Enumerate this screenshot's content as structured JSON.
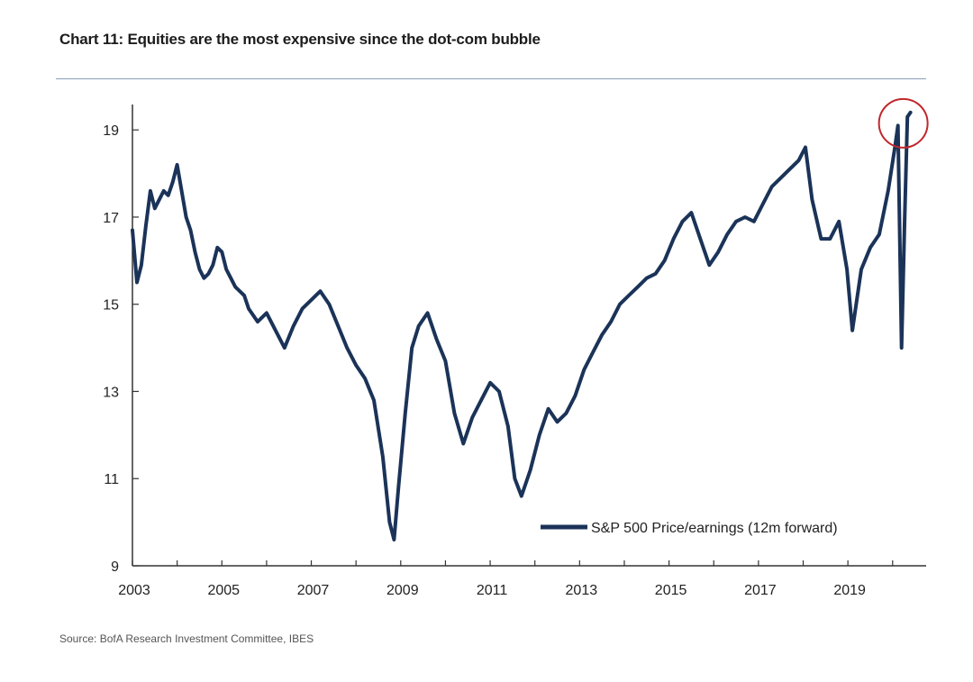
{
  "chart_data": {
    "type": "line",
    "title": "Chart 11: Equities are the most expensive since the dot-com bubble",
    "source": "Source: BofA Research Investment Committee, IBES",
    "xlabel": "",
    "ylabel": "",
    "xlim": [
      2003,
      2020.75
    ],
    "ylim": [
      9,
      19.5
    ],
    "x_ticks": [
      "2003",
      "2005",
      "2007",
      "2009",
      "2011",
      "2013",
      "2015",
      "2017",
      "2019"
    ],
    "y_ticks": [
      "9",
      "11",
      "13",
      "15",
      "17",
      "19"
    ],
    "grid": false,
    "legend": {
      "position": "bottom-right",
      "entries": [
        "S&P 500 Price/earnings (12m forward)"
      ]
    },
    "annotation": "red circle highlighting the early-2020 peak",
    "colors": {
      "line": "#1b3358",
      "annotation": "#c0282d",
      "axis": "#333333"
    },
    "series": [
      {
        "name": "S&P 500 Price/earnings (12m forward)",
        "x": [
          2003.0,
          2003.1,
          2003.2,
          2003.3,
          2003.4,
          2003.5,
          2003.6,
          2003.7,
          2003.8,
          2003.9,
          2004.0,
          2004.1,
          2004.2,
          2004.3,
          2004.4,
          2004.5,
          2004.6,
          2004.7,
          2004.8,
          2004.9,
          2005.0,
          2005.1,
          2005.2,
          2005.3,
          2005.4,
          2005.5,
          2005.6,
          2005.8,
          2006.0,
          2006.2,
          2006.4,
          2006.6,
          2006.8,
          2007.0,
          2007.2,
          2007.4,
          2007.6,
          2007.8,
          2008.0,
          2008.2,
          2008.4,
          2008.6,
          2008.75,
          2008.85,
          2008.95,
          2009.1,
          2009.25,
          2009.4,
          2009.6,
          2009.8,
          2010.0,
          2010.2,
          2010.4,
          2010.6,
          2010.8,
          2011.0,
          2011.2,
          2011.4,
          2011.55,
          2011.7,
          2011.9,
          2012.1,
          2012.3,
          2012.5,
          2012.7,
          2012.9,
          2013.1,
          2013.3,
          2013.5,
          2013.7,
          2013.9,
          2014.1,
          2014.3,
          2014.5,
          2014.7,
          2014.9,
          2015.1,
          2015.3,
          2015.5,
          2015.7,
          2015.9,
          2016.1,
          2016.3,
          2016.5,
          2016.7,
          2016.9,
          2017.1,
          2017.3,
          2017.5,
          2017.7,
          2017.9,
          2018.05,
          2018.2,
          2018.4,
          2018.6,
          2018.8,
          2018.98,
          2019.1,
          2019.3,
          2019.5,
          2019.7,
          2019.9,
          2020.05,
          2020.12,
          2020.2,
          2020.27,
          2020.33,
          2020.4
        ],
        "values": [
          16.7,
          15.5,
          15.9,
          16.8,
          17.6,
          17.2,
          17.4,
          17.6,
          17.5,
          17.8,
          18.2,
          17.6,
          17.0,
          16.7,
          16.2,
          15.8,
          15.6,
          15.7,
          15.9,
          16.3,
          16.2,
          15.8,
          15.6,
          15.4,
          15.3,
          15.2,
          14.9,
          14.6,
          14.8,
          14.4,
          14.0,
          14.5,
          14.9,
          15.1,
          15.3,
          15.0,
          14.5,
          14.0,
          13.6,
          13.3,
          12.8,
          11.5,
          10.0,
          9.6,
          10.8,
          12.5,
          14.0,
          14.5,
          14.8,
          14.2,
          13.7,
          12.5,
          11.8,
          12.4,
          12.8,
          13.2,
          13.0,
          12.2,
          11.0,
          10.6,
          11.2,
          12.0,
          12.6,
          12.3,
          12.5,
          12.9,
          13.5,
          13.9,
          14.3,
          14.6,
          15.0,
          15.2,
          15.4,
          15.6,
          15.7,
          16.0,
          16.5,
          16.9,
          17.1,
          16.5,
          15.9,
          16.2,
          16.6,
          16.9,
          17.0,
          16.9,
          17.3,
          17.7,
          17.9,
          18.1,
          18.3,
          18.6,
          17.4,
          16.5,
          16.5,
          16.9,
          15.8,
          14.4,
          15.8,
          16.3,
          16.6,
          17.6,
          18.6,
          19.1,
          14.0,
          17.0,
          19.3,
          19.4
        ]
      }
    ]
  }
}
